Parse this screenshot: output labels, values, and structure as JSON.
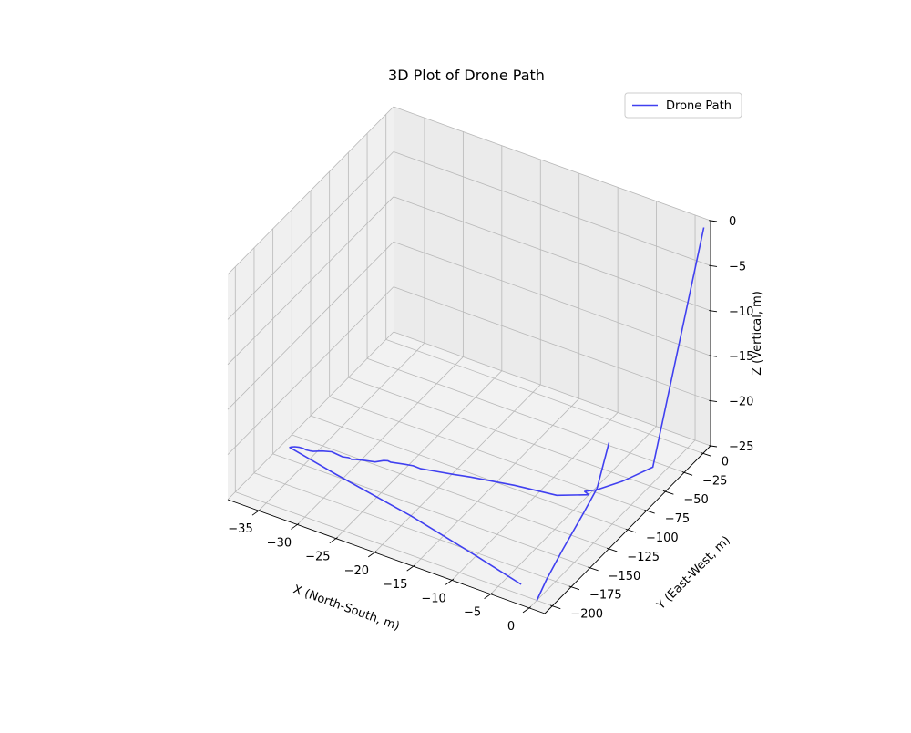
{
  "chart_data": {
    "type": "line3d",
    "title": "3D Plot of Drone Path",
    "xlabel": "X (North-South, m)",
    "ylabel": "Y (East-West, m)",
    "zlabel": "Z (Vertical, m)",
    "xlim": [
      -39,
      2
    ],
    "ylim": [
      -210,
      10
    ],
    "zlim": [
      -25,
      0
    ],
    "xticks": [
      -35,
      -30,
      -25,
      -20,
      -15,
      -10,
      -5,
      0
    ],
    "xtick_labels": [
      "−35",
      "−30",
      "−25",
      "−20",
      "−15",
      "−10",
      "−5",
      "0"
    ],
    "yticks": [
      0,
      -25,
      -50,
      -75,
      -100,
      -125,
      -150,
      -175,
      -200
    ],
    "ytick_labels": [
      "0",
      "−25",
      "−50",
      "−75",
      "−100",
      "−125",
      "−150",
      "−175",
      "−200"
    ],
    "zticks": [
      0,
      -5,
      -10,
      -15,
      -20,
      -25
    ],
    "ztick_labels": [
      "0",
      "−5",
      "−10",
      "−15",
      "−20",
      "−25"
    ],
    "grid": true,
    "legend": "top-right",
    "series": [
      {
        "name": "Drone Path",
        "color": "#4040f0",
        "x": [
          0,
          -0.2,
          -0.6,
          -0.8,
          -1.0,
          -1.2,
          -3,
          -10,
          -20,
          -31,
          -38,
          -37.9,
          -37.6,
          -37.1,
          -36.6,
          -36.2,
          -35.8,
          -35.4,
          -34.6,
          -33.6,
          -32.1,
          -31.4,
          -31.0,
          -30.6,
          -29.6,
          -28.5,
          -27.8,
          -27.4,
          -27.0,
          -25.4,
          -24.5,
          -23.5,
          -21.8,
          -19.8,
          -18.0,
          -13.0,
          -8.0,
          -5.0,
          -5.7,
          -5.2,
          -4.7,
          -3.1,
          -2.7,
          -1.5,
          2.0
        ],
        "y": [
          -200,
          -185,
          -160,
          -130,
          -110,
          -92,
          -190,
          -178,
          -162,
          -148,
          -138,
          -137,
          -135.5,
          -134.5,
          -134.2,
          -134.6,
          -134.3,
          -133.6,
          -130.2,
          -127.6,
          -128.6,
          -127.3,
          -128.1,
          -126.6,
          -124.4,
          -122.3,
          -118.0,
          -116.8,
          -117.1,
          -114.1,
          -112.8,
          -113.0,
          -110.2,
          -107.0,
          -103.8,
          -96.5,
          -91.4,
          -79.7,
          -78.0,
          -75.0,
          -72.2,
          -55.2,
          -49.3,
          -30.7,
          1.0
        ],
        "z": [
          -25,
          -24,
          -23,
          -21.5,
          -20.5,
          -17,
          -25,
          -25,
          -25,
          -25,
          -25,
          -25,
          -25,
          -25,
          -25,
          -25,
          -25,
          -25,
          -25,
          -25,
          -25,
          -25,
          -25,
          -25,
          -25,
          -25,
          -25,
          -25,
          -25,
          -25,
          -25,
          -25,
          -25,
          -25,
          -25,
          -25,
          -25,
          -25,
          -25,
          -25,
          -25,
          -25,
          -25,
          -25,
          0
        ],
        "break_after": [
          5
        ]
      }
    ]
  }
}
